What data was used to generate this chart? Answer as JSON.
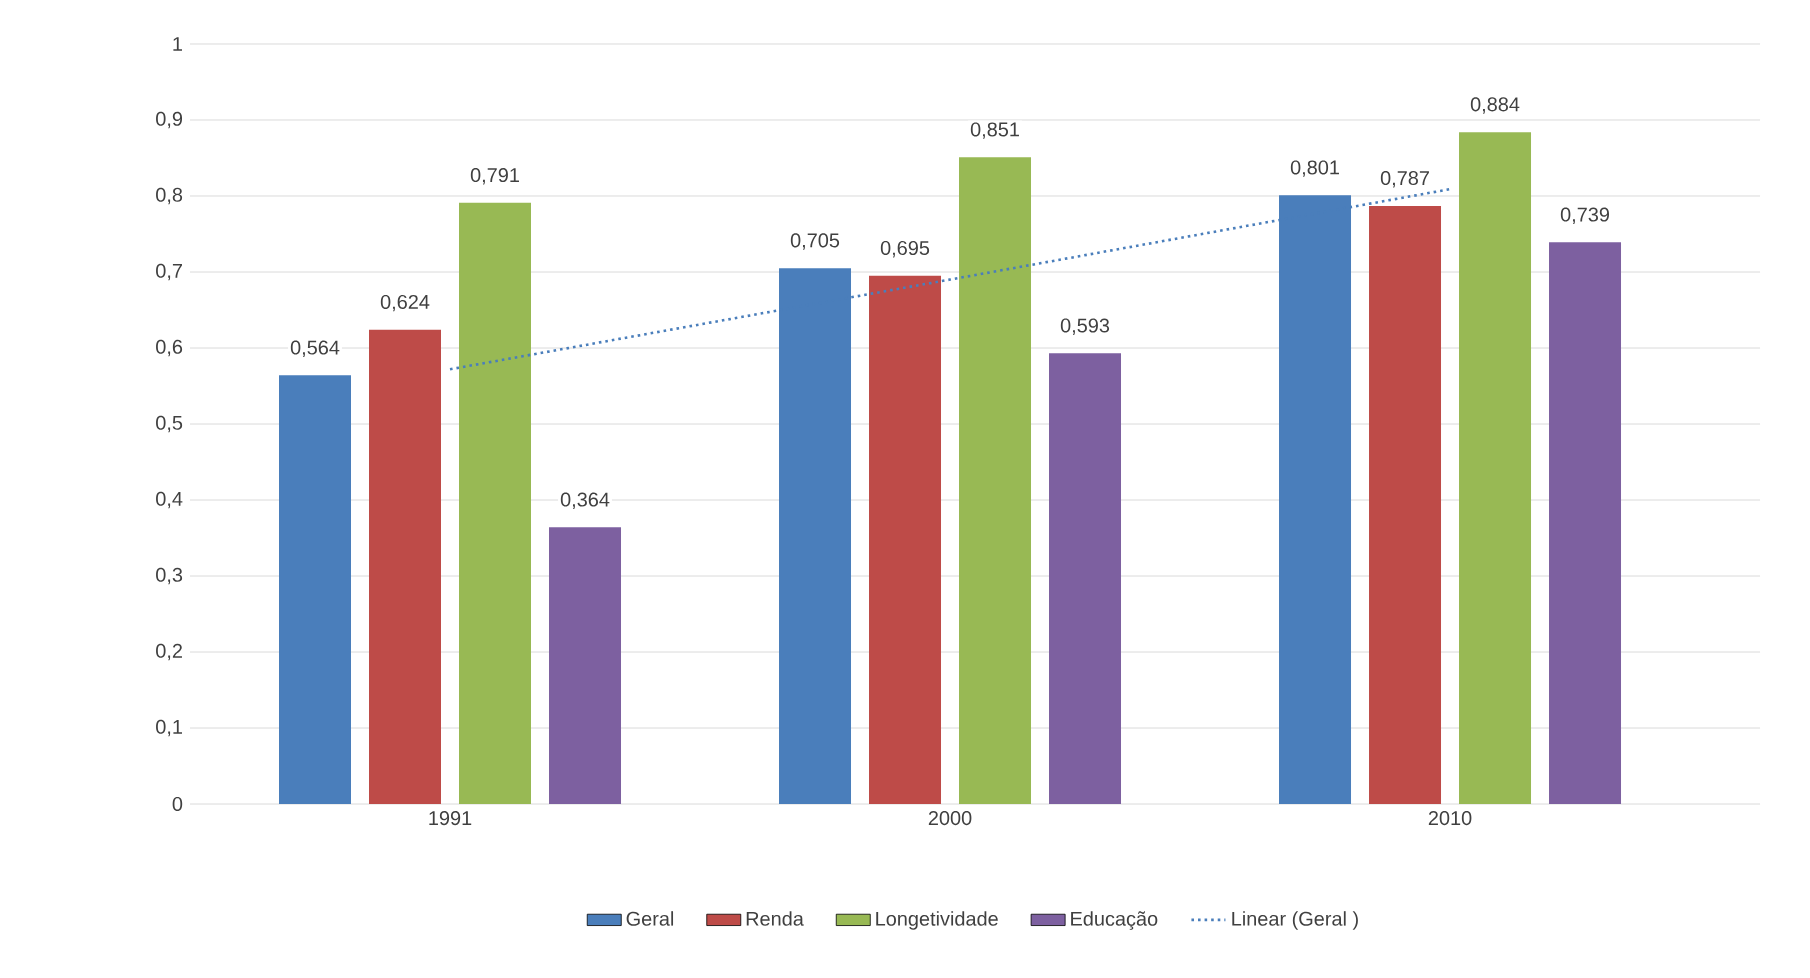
{
  "chart_data": {
    "type": "bar",
    "categories": [
      "1991",
      "2000",
      "2010"
    ],
    "series": [
      {
        "name": "Geral",
        "color": "#4a7ebb",
        "values": [
          0.564,
          0.705,
          0.801
        ],
        "value_labels": [
          "0,564",
          "0,705",
          "0,801"
        ]
      },
      {
        "name": "Renda",
        "color": "#be4b48",
        "values": [
          0.624,
          0.695,
          0.787
        ],
        "value_labels": [
          "0,624",
          "0,695",
          "0,787"
        ]
      },
      {
        "name": "Longetividade",
        "color": "#98b954",
        "values": [
          0.791,
          0.851,
          0.884
        ],
        "value_labels": [
          "0,791",
          "0,851",
          "0,884"
        ]
      },
      {
        "name": "Educação",
        "color": "#7d60a0",
        "values": [
          0.364,
          0.593,
          0.739
        ],
        "value_labels": [
          "0,364",
          "0,593",
          "0,739"
        ]
      },
      {
        "name": "Linear (Geral )",
        "type": "line",
        "line_style": "dotted",
        "color": "#4a7ebb",
        "values": [
          0.572,
          0.69,
          0.809
        ]
      }
    ],
    "ylim": [
      0,
      1
    ],
    "yticks": [
      {
        "value": 0,
        "label": "0"
      },
      {
        "value": 0.1,
        "label": "0,1"
      },
      {
        "value": 0.2,
        "label": "0,2"
      },
      {
        "value": 0.3,
        "label": "0,3"
      },
      {
        "value": 0.4,
        "label": "0,4"
      },
      {
        "value": 0.5,
        "label": "0,5"
      },
      {
        "value": 0.6,
        "label": "0,6"
      },
      {
        "value": 0.7,
        "label": "0,7"
      },
      {
        "value": 0.8,
        "label": "0,8"
      },
      {
        "value": 0.9,
        "label": "0,9"
      },
      {
        "value": 1,
        "label": "1"
      }
    ],
    "grid": "y",
    "legend": "bottom",
    "marker": "none"
  }
}
